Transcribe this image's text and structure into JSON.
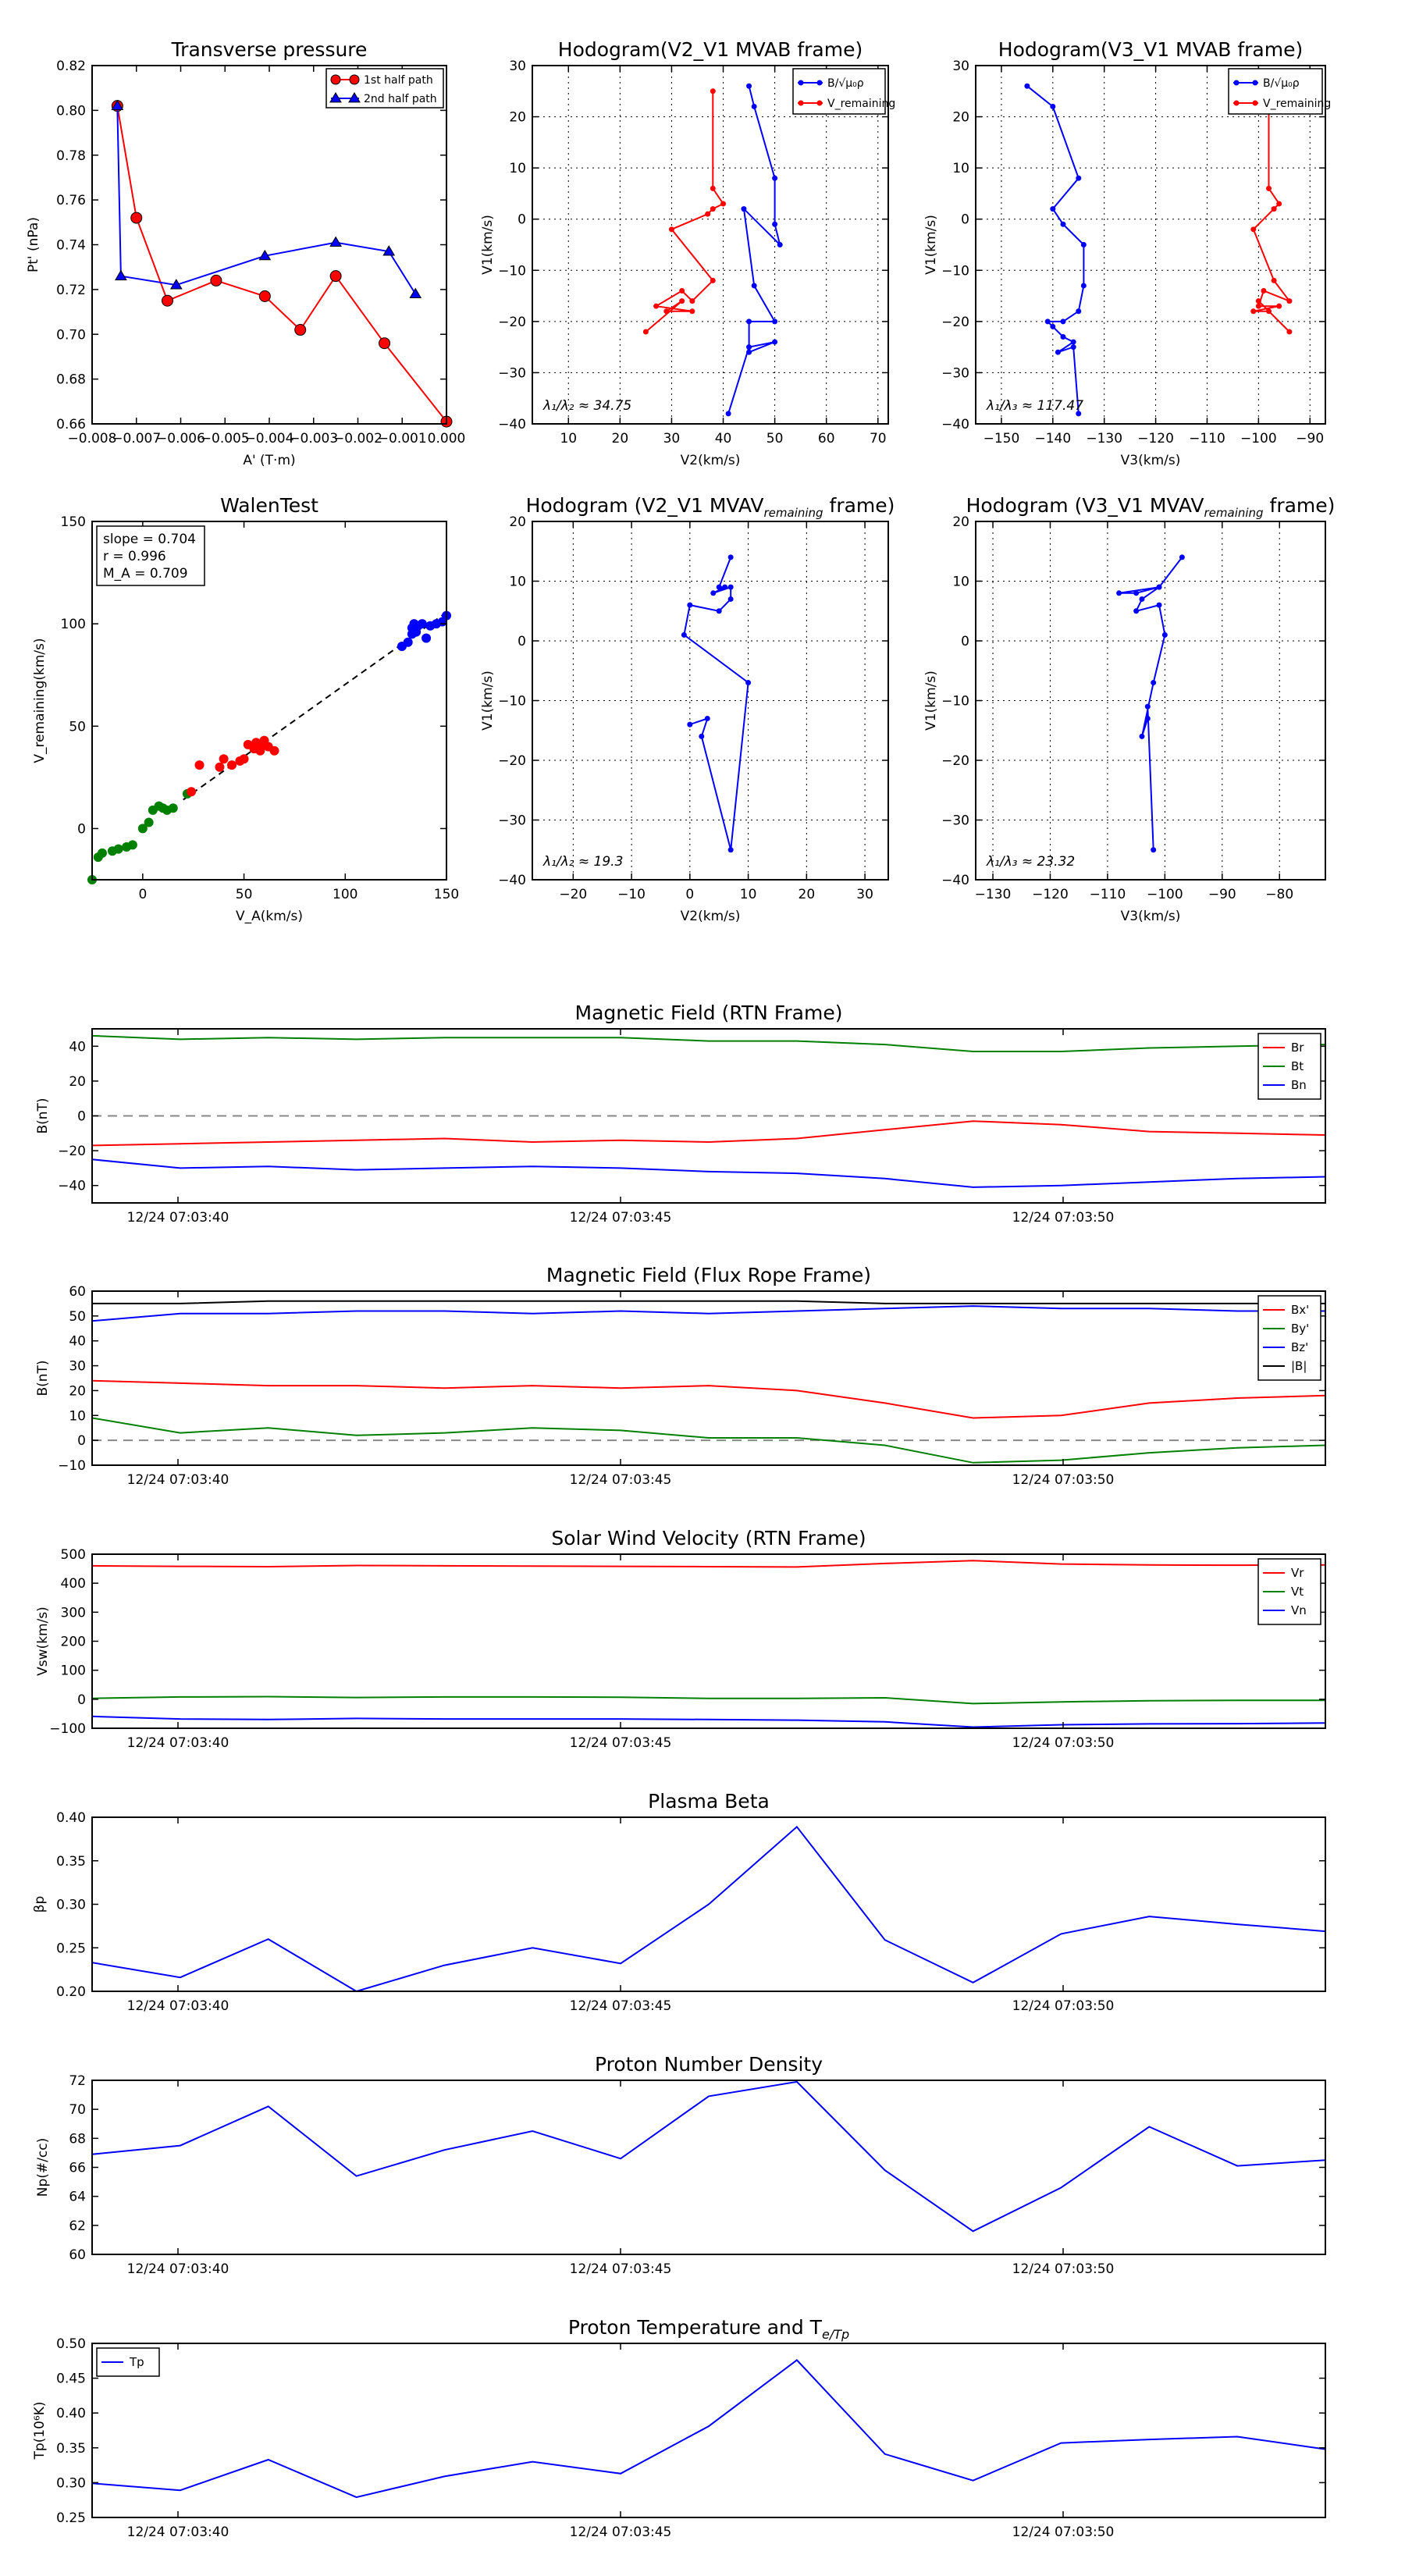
{
  "page": {
    "colors": {
      "red": "#ff0000",
      "blue": "#0000ff",
      "green": "#008000",
      "black": "#000000",
      "gray": "#888888"
    }
  },
  "time_ticks": [
    "12/24 07:03:40",
    "12/24 07:03:45",
    "12/24 07:03:50"
  ],
  "chart_data": [
    {
      "id": "pt",
      "type": "line",
      "title": "Transverse pressure",
      "xlabel": "A' (T·m)",
      "ylabel": "Pt' (nPa)",
      "xlim": [
        -0.008,
        0.0
      ],
      "ylim": [
        0.66,
        0.82
      ],
      "xticks": [
        -0.008,
        -0.007,
        -0.006,
        -0.005,
        -0.004,
        -0.003,
        -0.002,
        -0.001,
        0.0
      ],
      "xtick_labels": [
        "−0.008",
        "−0.007",
        "−0.006",
        "−0.005",
        "−0.004",
        "−0.003",
        "−0.002",
        "−0.001",
        "0.000"
      ],
      "yticks": [
        0.66,
        0.68,
        0.7,
        0.72,
        0.74,
        0.76,
        0.78,
        0.8,
        0.82
      ],
      "ytick_labels": [
        "0.66",
        "0.68",
        "0.70",
        "0.72",
        "0.74",
        "0.76",
        "0.78",
        "0.80",
        "0.82"
      ],
      "legend": [
        "1st half path",
        "2nd half path"
      ],
      "series": [
        {
          "name": "1st half path",
          "color": "#ff0000",
          "marker": "circle",
          "x": [
            -0.00743,
            -0.007,
            -0.0063,
            -0.0052,
            -0.0041,
            -0.0033,
            -0.0025,
            -0.0014,
            0.0
          ],
          "y": [
            0.802,
            0.752,
            0.715,
            0.724,
            0.717,
            0.702,
            0.726,
            0.696,
            0.661
          ]
        },
        {
          "name": "2nd half path",
          "color": "#0000ff",
          "marker": "triangle",
          "x": [
            -0.00743,
            -0.00735,
            -0.0061,
            -0.0041,
            -0.0025,
            -0.0013,
            -0.0007
          ],
          "y": [
            0.802,
            0.726,
            0.722,
            0.735,
            0.741,
            0.737,
            0.718
          ]
        }
      ]
    },
    {
      "id": "h21",
      "type": "line",
      "title": "Hodogram(V2_V1 MVAB frame)",
      "xlabel": "V2(km/s)",
      "ylabel": "V1(km/s)",
      "xlim": [
        3,
        72
      ],
      "ylim": [
        -40,
        30
      ],
      "xticks": [
        10,
        20,
        30,
        40,
        50,
        60,
        70
      ],
      "yticks": [
        -40,
        -30,
        -20,
        -10,
        0,
        10,
        20,
        30
      ],
      "annotation": "λ₁/λ₂ ≈ 34.75",
      "legend": [
        "B/√μ₀ρ",
        "V_remaining"
      ],
      "series": [
        {
          "name": "B/√μ₀ρ",
          "color": "#0000ff",
          "x": [
            45,
            46,
            50,
            50,
            51,
            44,
            46,
            50,
            45,
            45,
            50,
            45,
            41
          ],
          "y": [
            26,
            22,
            8,
            -1,
            -5,
            2,
            -13,
            -20,
            -20,
            -26,
            -24,
            -25,
            -38
          ]
        },
        {
          "name": "V_remaining",
          "color": "#ff0000",
          "x": [
            38,
            38,
            40,
            38,
            37,
            30,
            38,
            34,
            32,
            27,
            34,
            29,
            32,
            25
          ],
          "y": [
            25,
            6,
            3,
            2,
            1,
            -2,
            -12,
            -16,
            -14,
            -17,
            -18,
            -18,
            -16,
            -22
          ]
        }
      ]
    },
    {
      "id": "h31",
      "type": "line",
      "title": "Hodogram(V3_V1 MVAB frame)",
      "xlabel": "V3(km/s)",
      "ylabel": "V1(km/s)",
      "xlim": [
        -155,
        -87
      ],
      "ylim": [
        -40,
        30
      ],
      "xticks": [
        -150,
        -140,
        -130,
        -120,
        -110,
        -100,
        -90
      ],
      "yticks": [
        -40,
        -30,
        -20,
        -10,
        0,
        10,
        20,
        30
      ],
      "annotation": "λ₁/λ₃ ≈ 117.47",
      "legend": [
        "B/√μ₀ρ",
        "V_remaining"
      ],
      "series": [
        {
          "name": "B/√μ₀ρ",
          "color": "#0000ff",
          "x": [
            -145,
            -140,
            -135,
            -140,
            -138,
            -134,
            -134,
            -135,
            -138,
            -141,
            -140,
            -138,
            -136,
            -139,
            -136,
            -135
          ],
          "y": [
            26,
            22,
            8,
            2,
            -1,
            -5,
            -13,
            -18,
            -20,
            -20,
            -21,
            -23,
            -24,
            -26,
            -25,
            -38
          ]
        },
        {
          "name": "V_remaining",
          "color": "#ff0000",
          "x": [
            -98,
            -98,
            -96,
            -97,
            -101,
            -97,
            -94,
            -99,
            -100,
            -96,
            -101,
            -98,
            -100,
            -94
          ],
          "y": [
            25,
            6,
            3,
            2,
            -2,
            -12,
            -16,
            -14,
            -17,
            -17,
            -18,
            -18,
            -16,
            -22
          ]
        }
      ]
    },
    {
      "id": "walen",
      "type": "scatter",
      "title": "WalenTest",
      "xlabel": "V_A(km/s)",
      "ylabel": "V_remaining(km/s)",
      "xlim": [
        -25,
        150
      ],
      "ylim": [
        -25,
        150
      ],
      "xticks": [
        0,
        50,
        100,
        150
      ],
      "yticks": [
        0,
        50,
        100,
        150
      ],
      "stats": [
        "slope = 0.704",
        "r = 0.996",
        "M_A = 0.709"
      ],
      "fit": {
        "slope": 0.704,
        "intercept": 0
      },
      "series": [
        {
          "name": "green",
          "color": "#008000",
          "x": [
            -22,
            -20,
            -15,
            -12,
            -8,
            -5,
            0,
            3,
            5,
            8,
            10,
            12,
            15,
            22,
            -25
          ],
          "y": [
            -14,
            -12,
            -11,
            -10,
            -9,
            -8,
            0,
            3,
            9,
            11,
            10,
            9,
            10,
            17,
            -25
          ]
        },
        {
          "name": "red",
          "color": "#ff0000",
          "x": [
            24,
            28,
            38,
            40,
            44,
            48,
            50,
            52,
            55,
            58,
            60,
            62,
            65,
            58,
            56
          ],
          "y": [
            18,
            31,
            30,
            34,
            31,
            33,
            34,
            41,
            39,
            41,
            43,
            40,
            38,
            38,
            42
          ]
        },
        {
          "name": "blue",
          "color": "#0000ff",
          "x": [
            128,
            131,
            133,
            134,
            135,
            136,
            138,
            140,
            142,
            145,
            148,
            150,
            133
          ],
          "y": [
            89,
            91,
            95,
            100,
            96,
            99,
            100,
            93,
            99,
            100,
            101,
            104,
            98
          ]
        }
      ]
    },
    {
      "id": "hv21",
      "type": "line",
      "title": "Hodogram (V2_V1 MVAV",
      "title_sub": "remaining",
      "title_end": " frame)",
      "xlabel": "V2(km/s)",
      "ylabel": "V1(km/s)",
      "xlim": [
        -27,
        34
      ],
      "ylim": [
        -40,
        20
      ],
      "xticks": [
        -20,
        -10,
        0,
        10,
        20,
        30
      ],
      "yticks": [
        -40,
        -30,
        -20,
        -10,
        0,
        10,
        20
      ],
      "annotation": "λ₁/λ₂ ≈ 19.3",
      "series": [
        {
          "name": "V",
          "color": "#0000ff",
          "x": [
            7,
            5,
            6,
            4,
            7,
            7,
            5,
            0,
            -1,
            10,
            7,
            2,
            3,
            0
          ],
          "y": [
            14,
            9,
            9,
            8,
            9,
            7,
            5,
            6,
            1,
            -7,
            -35,
            -16,
            -13,
            -14
          ]
        }
      ]
    },
    {
      "id": "hv31",
      "type": "line",
      "title": "Hodogram (V3_V1 MVAV",
      "title_sub": "remaining",
      "title_end": " frame)",
      "xlabel": "V3(km/s)",
      "ylabel": "V1(km/s)",
      "xlim": [
        -133,
        -72
      ],
      "ylim": [
        -40,
        20
      ],
      "xticks": [
        -130,
        -120,
        -110,
        -100,
        -90,
        -80
      ],
      "yticks": [
        -40,
        -30,
        -20,
        -10,
        0,
        10,
        20
      ],
      "annotation": "λ₁/λ₃ ≈ 23.32",
      "series": [
        {
          "name": "V",
          "color": "#0000ff",
          "x": [
            -97,
            -101,
            -105,
            -108,
            -101,
            -104,
            -105,
            -101,
            -100,
            -102,
            -104,
            -103,
            -103,
            -102
          ],
          "y": [
            14,
            9,
            8,
            8,
            9,
            7,
            5,
            6,
            1,
            -7,
            -16,
            -13,
            -11,
            -35
          ]
        }
      ]
    },
    {
      "id": "mag_rtn",
      "type": "line",
      "title": "Magnetic Field (RTN Frame)",
      "ylabel": "B(nT)",
      "ylim": [
        -50,
        50
      ],
      "yticks": [
        -40,
        -20,
        0,
        20,
        40
      ],
      "zero_line": true,
      "legend_pos": "top-right",
      "series": [
        {
          "name": "Br",
          "color": "#ff0000",
          "values": [
            -17,
            -16,
            -15,
            -14,
            -13,
            -15,
            -14,
            -15,
            -13,
            -8,
            -3,
            -5,
            -9,
            -10,
            -11
          ]
        },
        {
          "name": "Bt",
          "color": "#008000",
          "values": [
            46,
            44,
            45,
            44,
            45,
            45,
            45,
            43,
            43,
            41,
            37,
            37,
            39,
            40,
            41
          ]
        },
        {
          "name": "Bn",
          "color": "#0000ff",
          "values": [
            -25,
            -30,
            -29,
            -31,
            -30,
            -29,
            -30,
            -32,
            -33,
            -36,
            -41,
            -40,
            -38,
            -36,
            -35
          ]
        }
      ]
    },
    {
      "id": "mag_fr",
      "type": "line",
      "title": "Magnetic Field (Flux Rope Frame)",
      "ylabel": "B(nT)",
      "ylim": [
        -10,
        60
      ],
      "yticks": [
        -10,
        0,
        10,
        20,
        30,
        40,
        50,
        60
      ],
      "zero_line": true,
      "legend_pos": "top-right",
      "series": [
        {
          "name": "Bx'",
          "color": "#ff0000",
          "values": [
            24,
            23,
            22,
            22,
            21,
            22,
            21,
            22,
            20,
            15,
            9,
            10,
            15,
            17,
            18
          ]
        },
        {
          "name": "By'",
          "color": "#008000",
          "values": [
            9,
            3,
            5,
            2,
            3,
            5,
            4,
            1,
            1,
            -2,
            -9,
            -8,
            -5,
            -3,
            -2
          ]
        },
        {
          "name": "Bz'",
          "color": "#0000ff",
          "values": [
            48,
            51,
            51,
            52,
            52,
            51,
            52,
            51,
            52,
            53,
            54,
            53,
            53,
            52,
            52
          ]
        },
        {
          "name": "|B|",
          "color": "#000000",
          "values": [
            55,
            55,
            56,
            56,
            56,
            56,
            56,
            56,
            56,
            55,
            55,
            55,
            55,
            55,
            55
          ]
        }
      ]
    },
    {
      "id": "vsw",
      "type": "line",
      "title": "Solar Wind Velocity (RTN Frame)",
      "ylabel": "Vsw(km/s)",
      "ylim": [
        -100,
        500
      ],
      "yticks": [
        -100,
        0,
        100,
        200,
        300,
        400,
        500
      ],
      "legend_pos": "top-right",
      "series": [
        {
          "name": "Vr",
          "color": "#ff0000",
          "values": [
            460,
            458,
            457,
            461,
            460,
            459,
            458,
            457,
            456,
            468,
            478,
            466,
            463,
            462,
            463
          ]
        },
        {
          "name": "Vt",
          "color": "#008000",
          "values": [
            3,
            8,
            9,
            6,
            8,
            8,
            7,
            3,
            3,
            5,
            -15,
            -9,
            -5,
            -4,
            -4
          ]
        },
        {
          "name": "Vn",
          "color": "#0000ff",
          "values": [
            -59,
            -68,
            -70,
            -66,
            -68,
            -68,
            -68,
            -70,
            -72,
            -78,
            -96,
            -88,
            -85,
            -84,
            -82
          ]
        }
      ]
    },
    {
      "id": "beta",
      "type": "line",
      "title": "Plasma Beta",
      "ylabel": "βp",
      "ylim": [
        0.2,
        0.4
      ],
      "yticks": [
        0.2,
        0.25,
        0.3,
        0.35,
        0.4
      ],
      "ytick_labels": [
        "0.20",
        "0.25",
        "0.30",
        "0.35",
        "0.40"
      ],
      "series": [
        {
          "name": "beta",
          "color": "#0000ff",
          "values": [
            0.233,
            0.216,
            0.26,
            0.2,
            0.23,
            0.25,
            0.232,
            0.3,
            0.389,
            0.259,
            0.21,
            0.266,
            0.286,
            0.277,
            0.269
          ]
        }
      ]
    },
    {
      "id": "np",
      "type": "line",
      "title": "Proton Number Density",
      "ylabel": "Np(#/cc)",
      "ylim": [
        60,
        72
      ],
      "yticks": [
        60,
        62,
        64,
        66,
        68,
        70,
        72
      ],
      "series": [
        {
          "name": "Np",
          "color": "#0000ff",
          "values": [
            66.9,
            67.5,
            70.2,
            65.4,
            67.2,
            68.5,
            66.6,
            70.9,
            71.9,
            65.8,
            61.6,
            64.6,
            68.8,
            66.1,
            66.5
          ]
        }
      ]
    },
    {
      "id": "tp",
      "type": "line",
      "title": "Proton Temperature and T",
      "title_tail": "e/Tp",
      "ylabel": "Tp(10⁶K)",
      "ylim": [
        0.25,
        0.5
      ],
      "yticks": [
        0.25,
        0.3,
        0.35,
        0.4,
        0.45,
        0.5
      ],
      "ytick_labels": [
        "0.25",
        "0.30",
        "0.35",
        "0.40",
        "0.45",
        "0.50"
      ],
      "legend_pos": "top-left",
      "series": [
        {
          "name": "Tp",
          "color": "#0000ff",
          "values": [
            0.299,
            0.289,
            0.333,
            0.279,
            0.309,
            0.33,
            0.313,
            0.381,
            0.476,
            0.341,
            0.303,
            0.357,
            0.362,
            0.366,
            0.348
          ]
        }
      ]
    }
  ]
}
